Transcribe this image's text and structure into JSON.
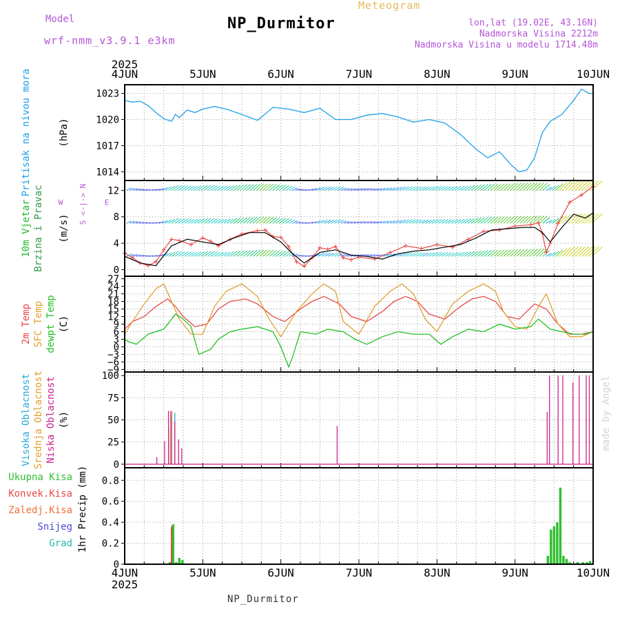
{
  "header": {
    "model_label": "Model",
    "model_name": "wrf-nmm_v3.9.1 e3km",
    "chart_type": "Meteogram",
    "station": "NP_Durmitor",
    "lonlat": "lon,lat (19.02E, 43.16N)",
    "altitude": "Nadmorska Visina 2212m",
    "model_altitude": "Nadmorska Visina u modelu 1714.48m"
  },
  "footer": {
    "station": "NP_Durmitor"
  },
  "credit": "made by Angel",
  "colors": {
    "pressure": "#1ea0e8",
    "wind": "#20b82a",
    "wind2": "#2f9a4a",
    "wind_dir": "#b455d8",
    "temp2m": "#e84848",
    "sfc": "#e0a030",
    "dew": "#20c020",
    "cloud_high": "#28a8d8",
    "cloud_mid": "#e0a030",
    "cloud_low": "#d0208c",
    "rain_total": "#30c030",
    "rain_conv": "#e84848",
    "freezing": "#f07030",
    "snow": "#4848d8",
    "graupel": "#28b8a8",
    "grid": "#999999"
  },
  "chart_data": {
    "type": "meteogram",
    "time_axis": {
      "year": "2025",
      "labels": [
        "4JUN",
        "5JUN",
        "6JUN",
        "7JUN",
        "8JUN",
        "9JUN",
        "10JUN"
      ],
      "start_day": 4,
      "end_day": 10
    },
    "panels": [
      {
        "id": "pressure",
        "type": "line",
        "ylabel_lines": [
          {
            "text": "Pritisak na nivou mora",
            "color_key": "pressure"
          }
        ],
        "unit": "(hPa)",
        "ylim": [
          1013,
          1024
        ],
        "yticks": [
          1014,
          1017,
          1020,
          1023
        ],
        "series": [
          {
            "name": "Pritisak na nivou mora",
            "color_key": "pressure",
            "x": [
              4.0,
              4.1,
              4.2,
              4.3,
              4.4,
              4.5,
              4.6,
              4.65,
              4.7,
              4.8,
              4.9,
              5.0,
              5.15,
              5.3,
              5.5,
              5.7,
              5.9,
              6.1,
              6.3,
              6.5,
              6.7,
              6.9,
              7.1,
              7.3,
              7.5,
              7.7,
              7.9,
              8.1,
              8.3,
              8.5,
              8.65,
              8.8,
              8.95,
              9.05,
              9.15,
              9.25,
              9.35,
              9.45,
              9.6,
              9.75,
              9.85,
              9.95,
              10.0
            ],
            "y": [
              1022.2,
              1022.0,
              1022.1,
              1021.6,
              1020.8,
              1020.1,
              1019.8,
              1020.6,
              1020.2,
              1021.1,
              1020.8,
              1021.2,
              1021.5,
              1021.2,
              1020.6,
              1019.9,
              1021.4,
              1021.2,
              1020.8,
              1021.3,
              1020.0,
              1020.0,
              1020.5,
              1020.7,
              1020.3,
              1019.7,
              1020.0,
              1019.6,
              1018.3,
              1016.6,
              1015.6,
              1016.3,
              1014.8,
              1014.0,
              1014.2,
              1015.6,
              1018.5,
              1019.8,
              1020.6,
              1022.2,
              1023.5,
              1023.0,
              1023.0
            ]
          }
        ]
      },
      {
        "id": "wind",
        "type": "wind",
        "ylabel_lines": [
          {
            "text": "10m Vjetar",
            "color_key": "wind"
          },
          {
            "text": "Brzina i Pravac",
            "color_key": "wind2"
          }
        ],
        "unit": "(m/s)",
        "compass": {
          "n": "N",
          "s": "S",
          "e": "E",
          "w": "W",
          "arrows": "<-|->"
        },
        "ylim": [
          -1,
          13.5
        ],
        "yticks": [
          0,
          4,
          8,
          12
        ],
        "barb_levels": [
          12,
          7,
          2
        ],
        "series": [
          {
            "name": "Brzina vjetra",
            "color_key": "temp2m",
            "marker": "+",
            "x": [
              4.0,
              4.1,
              4.2,
              4.3,
              4.4,
              4.5,
              4.6,
              4.7,
              4.85,
              5.0,
              5.1,
              5.2,
              5.35,
              5.5,
              5.7,
              5.8,
              5.9,
              6.0,
              6.1,
              6.2,
              6.3,
              6.4,
              6.5,
              6.6,
              6.7,
              6.8,
              6.9,
              7.0,
              7.2,
              7.4,
              7.6,
              7.8,
              8.0,
              8.2,
              8.4,
              8.6,
              8.8,
              9.0,
              9.2,
              9.3,
              9.35,
              9.4,
              9.45,
              9.55,
              9.7,
              9.85,
              10.0
            ],
            "y": [
              2.5,
              1.8,
              1.0,
              0.6,
              1.2,
              3.0,
              4.6,
              4.4,
              3.8,
              4.8,
              4.3,
              3.6,
              4.6,
              5.4,
              5.9,
              6.0,
              5.0,
              4.9,
              3.5,
              1.2,
              0.5,
              1.8,
              3.3,
              3.1,
              3.5,
              1.8,
              1.5,
              1.9,
              1.6,
              2.6,
              3.6,
              3.2,
              3.8,
              3.4,
              4.6,
              5.8,
              6.0,
              6.6,
              6.8,
              7.1,
              5.5,
              2.6,
              4.0,
              7.0,
              10.2,
              11.3,
              12.6
            ]
          },
          {
            "name": "Brzina modela",
            "color_key": "black",
            "x": [
              4.0,
              4.2,
              4.4,
              4.6,
              4.8,
              5.0,
              5.2,
              5.4,
              5.6,
              5.8,
              6.0,
              6.15,
              6.3,
              6.5,
              6.7,
              6.9,
              7.1,
              7.3,
              7.5,
              7.7,
              7.9,
              8.1,
              8.3,
              8.5,
              8.7,
              8.9,
              9.1,
              9.25,
              9.35,
              9.45,
              9.6,
              9.75,
              9.9,
              10.0
            ],
            "y": [
              2.0,
              1.0,
              0.6,
              3.6,
              4.6,
              4.2,
              3.8,
              4.8,
              5.6,
              5.6,
              4.2,
              2.4,
              1.0,
              2.6,
              3.0,
              2.2,
              2.0,
              1.6,
              2.4,
              2.8,
              3.0,
              3.4,
              3.8,
              4.8,
              6.0,
              6.2,
              6.4,
              6.4,
              5.6,
              4.2,
              6.4,
              8.4,
              7.8,
              8.6
            ]
          }
        ]
      },
      {
        "id": "temperature",
        "type": "line",
        "ylabel_lines": [
          {
            "text": "2m Temp",
            "color_key": "temp2m"
          },
          {
            "text": "SFC Temp",
            "color_key": "sfc"
          },
          {
            "text": "dewpt Temp",
            "color_key": "dew"
          }
        ],
        "unit": "(C)",
        "ylim": [
          -10,
          28
        ],
        "yticks": [
          -9,
          -6,
          -3,
          0,
          3,
          6,
          9,
          12,
          15,
          18,
          21,
          24,
          27
        ],
        "series": [
          {
            "name": "2m Temp",
            "color_key": "temp2m",
            "x": [
              4.0,
              4.1,
              4.25,
              4.4,
              4.55,
              4.65,
              4.75,
              4.9,
              5.05,
              5.2,
              5.35,
              5.55,
              5.7,
              5.9,
              6.05,
              6.25,
              6.4,
              6.55,
              6.75,
              6.9,
              7.1,
              7.3,
              7.45,
              7.6,
              7.75,
              7.9,
              8.1,
              8.3,
              8.45,
              8.6,
              8.75,
              8.9,
              9.05,
              9.25,
              9.4,
              9.55,
              9.7,
              9.85,
              10.0
            ],
            "y": [
              7,
              10,
              12,
              16,
              19,
              16,
              12,
              8,
              9,
              15,
              18,
              19,
              17,
              12,
              10,
              15,
              18,
              20,
              17,
              12,
              10,
              14,
              18,
              20,
              18,
              13,
              11,
              16,
              19,
              20,
              18,
              12,
              11,
              17,
              15,
              9,
              5,
              5,
              6
            ]
          },
          {
            "name": "SFC Temp",
            "color_key": "sfc",
            "x": [
              4.0,
              4.1,
              4.25,
              4.4,
              4.5,
              4.6,
              4.7,
              4.85,
              5.0,
              5.15,
              5.3,
              5.5,
              5.7,
              5.85,
              6.0,
              6.2,
              6.4,
              6.55,
              6.7,
              6.8,
              7.0,
              7.2,
              7.4,
              7.55,
              7.7,
              7.85,
              8.0,
              8.2,
              8.4,
              8.6,
              8.75,
              8.85,
              9.0,
              9.15,
              9.3,
              9.4,
              9.55,
              9.7,
              9.85,
              10.0
            ],
            "y": [
              5,
              10,
              17,
              23,
              25,
              18,
              11,
              5,
              5,
              16,
              22,
              25,
              20,
              11,
              4,
              14,
              21,
              25,
              22,
              10,
              5,
              16,
              22,
              25,
              21,
              11,
              6,
              17,
              22,
              25,
              22,
              14,
              8,
              7,
              16,
              21,
              9,
              4,
              4,
              6
            ]
          },
          {
            "name": "dewpt Temp",
            "color_key": "dew",
            "x": [
              4.0,
              4.05,
              4.15,
              4.3,
              4.5,
              4.65,
              4.75,
              4.85,
              4.95,
              5.1,
              5.2,
              5.35,
              5.5,
              5.7,
              5.9,
              6.0,
              6.1,
              6.15,
              6.25,
              6.45,
              6.6,
              6.8,
              6.95,
              7.1,
              7.3,
              7.5,
              7.7,
              7.9,
              8.05,
              8.2,
              8.4,
              8.6,
              8.8,
              9.0,
              9.2,
              9.3,
              9.45,
              9.6,
              9.75,
              9.9,
              10.0
            ],
            "y": [
              3,
              2,
              1,
              5,
              7,
              13,
              11,
              8,
              -3,
              -1,
              3,
              6,
              7,
              8,
              6,
              0,
              -8,
              -4,
              6,
              5,
              7,
              6,
              3,
              1,
              4,
              6,
              5,
              5,
              1,
              4,
              7,
              6,
              9,
              7,
              8,
              11,
              7,
              6,
              5,
              5,
              6
            ]
          }
        ]
      },
      {
        "id": "clouds",
        "type": "bar",
        "ylabel_lines": [
          {
            "text": "Visoka Oblacnost",
            "color_key": "cloud_high"
          },
          {
            "text": "Srednja Oblacnost",
            "color_key": "cloud_mid"
          },
          {
            "text": "Niska Oblacnost",
            "color_key": "cloud_low"
          }
        ],
        "unit": "(%)",
        "ylim": [
          -4,
          104
        ],
        "yticks": [
          0,
          25,
          50,
          75,
          100
        ],
        "series": [
          {
            "name": "Visoka Oblacnost",
            "color_key": "cloud_high",
            "x": [
              4.58,
              4.62
            ],
            "values": [
              55,
              58
            ]
          },
          {
            "name": "Srednja Oblacnost",
            "color_key": "cloud_mid",
            "x": [
              4.56,
              4.6
            ],
            "values": [
              40,
              60
            ]
          },
          {
            "name": "Niska Oblacnost",
            "color_key": "cloud_low",
            "x": [
              4.42,
              4.52,
              4.57,
              4.6,
              4.65,
              4.7,
              4.74,
              6.73,
              9.42,
              9.45,
              9.56,
              9.62,
              9.75,
              9.83,
              9.92,
              9.96
            ],
            "values": [
              8,
              26,
              60,
              60,
              48,
              28,
              18,
              43,
              59,
              100,
              100,
              100,
              92,
              100,
              100,
              100
            ]
          }
        ]
      },
      {
        "id": "precip",
        "type": "bar",
        "ylabel_lines": [
          {
            "text": "1hr Precip (mm)",
            "color_key": "black"
          }
        ],
        "legend": [
          {
            "text": "Ukupna Kisa",
            "color_key": "rain_total"
          },
          {
            "text": "Konvek.Kisa",
            "color_key": "rain_conv"
          },
          {
            "text": "Zaledj.Kisa",
            "color_key": "freezing"
          },
          {
            "text": "Snijeg",
            "color_key": "snow"
          },
          {
            "text": "Grad",
            "color_key": "graupel"
          }
        ],
        "ylim": [
          0,
          0.92
        ],
        "yticks": [
          0,
          0.2,
          0.4,
          0.6,
          0.8
        ],
        "series": [
          {
            "name": "Ukupna Kisa",
            "color_key": "rain_total",
            "x": [
              4.58,
              4.62,
              4.66,
              4.7,
              4.74,
              9.42,
              9.46,
              9.5,
              9.54,
              9.58,
              9.62,
              9.66,
              9.7,
              9.8,
              9.87,
              9.92,
              9.96
            ],
            "values": [
              0.02,
              0.38,
              0.02,
              0.06,
              0.04,
              0.08,
              0.33,
              0.36,
              0.4,
              0.73,
              0.08,
              0.05,
              0.02,
              0.02,
              0.02,
              0.02,
              0.03
            ]
          },
          {
            "name": "Konvek.Kisa",
            "color_key": "rain_conv",
            "x": [
              4.6
            ],
            "values": [
              0.36
            ]
          }
        ]
      }
    ]
  }
}
